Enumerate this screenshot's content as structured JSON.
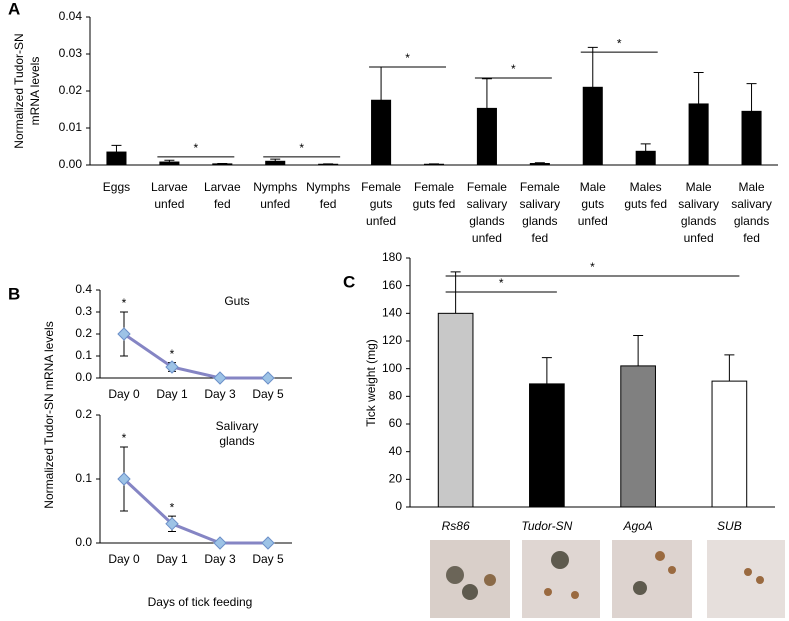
{
  "chart_data": [
    {
      "type": "bar",
      "panel": "A",
      "y_label": "Normalized Tudor-SN\nmRNA levels",
      "categories": [
        "Eggs",
        "Larvae\nunfed",
        "Larvae\nfed",
        "Nymphs\nunfed",
        "Nymphs\nfed",
        "Female\nguts\nunfed",
        "Female\nguts fed",
        "Female\nsalivary\nglands\nunfed",
        "Female\nsalivary\nglands\nfed",
        "Male\nguts\nunfed",
        "Males\nguts fed",
        "Male\nsalivary\nglands\nunfed",
        "Male\nsalivary\nglands\nfed"
      ],
      "values": [
        0.0035,
        0.0008,
        0.0003,
        0.001,
        0.0002,
        0.0175,
        0.0002,
        0.0153,
        0.0004,
        0.021,
        0.0037,
        0.0165,
        0.0145
      ],
      "errors": [
        0.0018,
        0.0005,
        0.0001,
        0.0006,
        0.0001,
        0.009,
        0.0001,
        0.008,
        0.0002,
        0.0108,
        0.002,
        0.0085,
        0.0075
      ],
      "color": "#000000",
      "ylim": [
        0,
        0.04
      ],
      "yticks": [
        {
          "value": 0,
          "label": "0.00"
        },
        {
          "value": 0.01,
          "label": "0.01"
        },
        {
          "value": 0.02,
          "label": "0.02"
        },
        {
          "value": 0.03,
          "label": "0.03"
        },
        {
          "value": 0.04,
          "label": "0.04"
        }
      ],
      "annotations": [
        "*",
        "*",
        "*",
        "*",
        "*"
      ]
    },
    {
      "type": "line",
      "panel": "B",
      "y_label": "Normalized Tudor-SN mRNA levels",
      "categories": [
        "Day 0",
        "Day 1",
        "Day 3",
        "Day 5"
      ],
      "series": [
        {
          "name": "Guts",
          "color": "#8585c4",
          "marker_color": "#9dc3e6",
          "values": [
            0.2,
            0.05,
            0,
            0
          ],
          "errors": [
            0.1,
            0.02,
            0,
            0
          ]
        }
      ],
      "ylim": [
        0,
        0.4
      ],
      "yticks": [
        {
          "value": 0,
          "label": "0.0"
        },
        0.1,
        0.2,
        0.3,
        0.4
      ],
      "annotations": [
        "*",
        "*"
      ]
    },
    {
      "type": "line",
      "x_label": "Days of tick feeding",
      "categories": [
        "Day 0",
        "Day 1",
        "Day 3",
        "Day 5"
      ],
      "series": [
        {
          "name": "Salivary\nglands",
          "color": "#8585c4",
          "marker_color": "#9dc3e6",
          "values": [
            0.1,
            0.03,
            0,
            0
          ],
          "errors": [
            0.05,
            0.012,
            0,
            0
          ]
        }
      ],
      "ylim": [
        0,
        0.2
      ],
      "yticks": [
        {
          "value": 0,
          "label": "0.0"
        },
        0.1,
        0.2
      ],
      "annotations": [
        "*",
        "*"
      ]
    },
    {
      "type": "bar",
      "panel": "C",
      "y_label": "Tick weight (mg)",
      "categories": [
        "Rs86",
        "Tudor-SN",
        "AgoA",
        "SUB"
      ],
      "values": [
        140,
        89,
        102,
        91
      ],
      "errors": [
        30,
        19,
        22,
        19
      ],
      "colors": [
        "#c8c8c8",
        "#000000",
        "#808080",
        "#ffffff"
      ],
      "ylim": [
        0,
        180
      ],
      "yticks": [
        0,
        20,
        40,
        60,
        80,
        100,
        120,
        140,
        160,
        180
      ],
      "annotations": [
        "*",
        "*"
      ]
    }
  ]
}
